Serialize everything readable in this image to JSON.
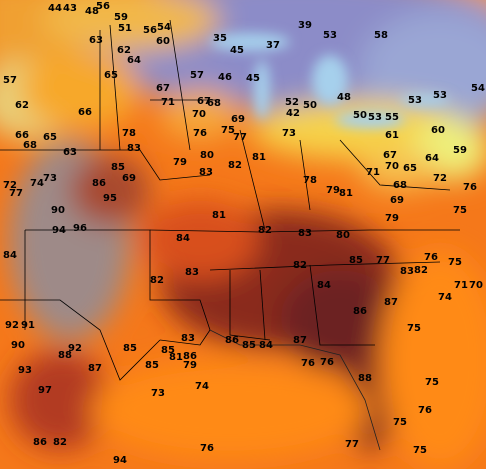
{
  "temperatures": [
    44,
    43,
    48,
    56,
    59,
    51,
    56,
    54,
    60,
    63,
    62,
    64,
    65,
    57,
    62,
    66,
    67,
    71,
    57,
    35,
    45,
    37,
    39,
    53,
    58,
    45,
    46,
    50,
    52,
    42,
    48,
    50,
    53,
    55,
    53,
    54,
    53,
    60,
    59,
    61,
    64,
    65,
    67,
    70,
    71,
    68,
    72,
    76,
    75,
    69,
    79,
    79,
    81,
    78,
    81,
    82,
    77,
    75,
    73,
    76,
    69,
    70,
    67,
    68,
    78,
    83,
    85,
    86,
    69,
    79,
    80,
    83,
    65,
    66,
    68,
    63,
    72,
    74,
    73,
    77,
    90,
    95,
    94,
    96,
    81,
    82,
    83,
    80,
    84,
    84,
    82,
    83,
    82,
    84,
    85,
    77,
    83,
    82,
    76,
    75,
    71,
    70,
    74,
    87,
    75,
    86,
    87,
    85,
    84,
    86,
    88,
    76,
    76,
    92,
    91,
    90,
    92,
    88,
    85,
    83,
    85,
    81,
    86,
    79,
    85,
    87,
    93,
    74,
    73,
    97,
    75,
    76,
    75,
    77,
    76,
    86,
    82,
    75,
    94
  ]
}
